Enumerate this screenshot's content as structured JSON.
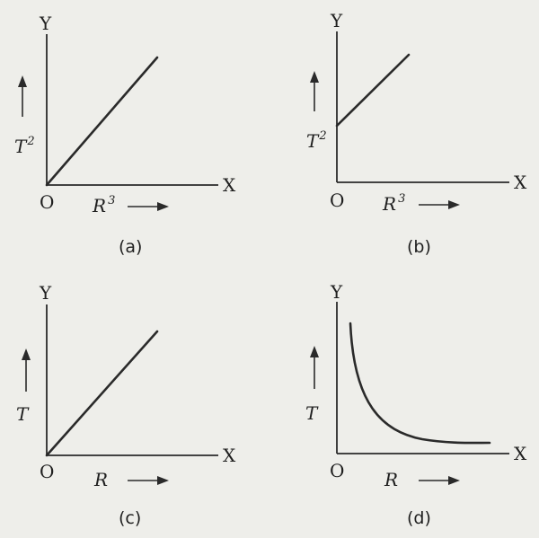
{
  "panels": [
    {
      "id": "a",
      "caption": "(a)",
      "y_axis": "Y",
      "x_axis": "X",
      "origin": "O",
      "y_var": "T",
      "y_exp": "2",
      "x_var": "R",
      "x_exp": "3",
      "relation": "line through origin"
    },
    {
      "id": "b",
      "caption": "(b)",
      "y_axis": "Y",
      "x_axis": "X",
      "origin": "O",
      "y_var": "T",
      "y_exp": "2",
      "x_var": "R",
      "x_exp": "3",
      "relation": "line with positive intercept"
    },
    {
      "id": "c",
      "caption": "(c)",
      "y_axis": "Y",
      "x_axis": "X",
      "origin": "O",
      "y_var": "T",
      "y_exp": "",
      "x_var": "R",
      "x_exp": "",
      "relation": "line through origin"
    },
    {
      "id": "d",
      "caption": "(d)",
      "y_axis": "Y",
      "x_axis": "X",
      "origin": "O",
      "y_var": "T",
      "y_exp": "",
      "x_var": "R",
      "x_exp": "",
      "relation": "decreasing hyperbola-like curve"
    }
  ]
}
